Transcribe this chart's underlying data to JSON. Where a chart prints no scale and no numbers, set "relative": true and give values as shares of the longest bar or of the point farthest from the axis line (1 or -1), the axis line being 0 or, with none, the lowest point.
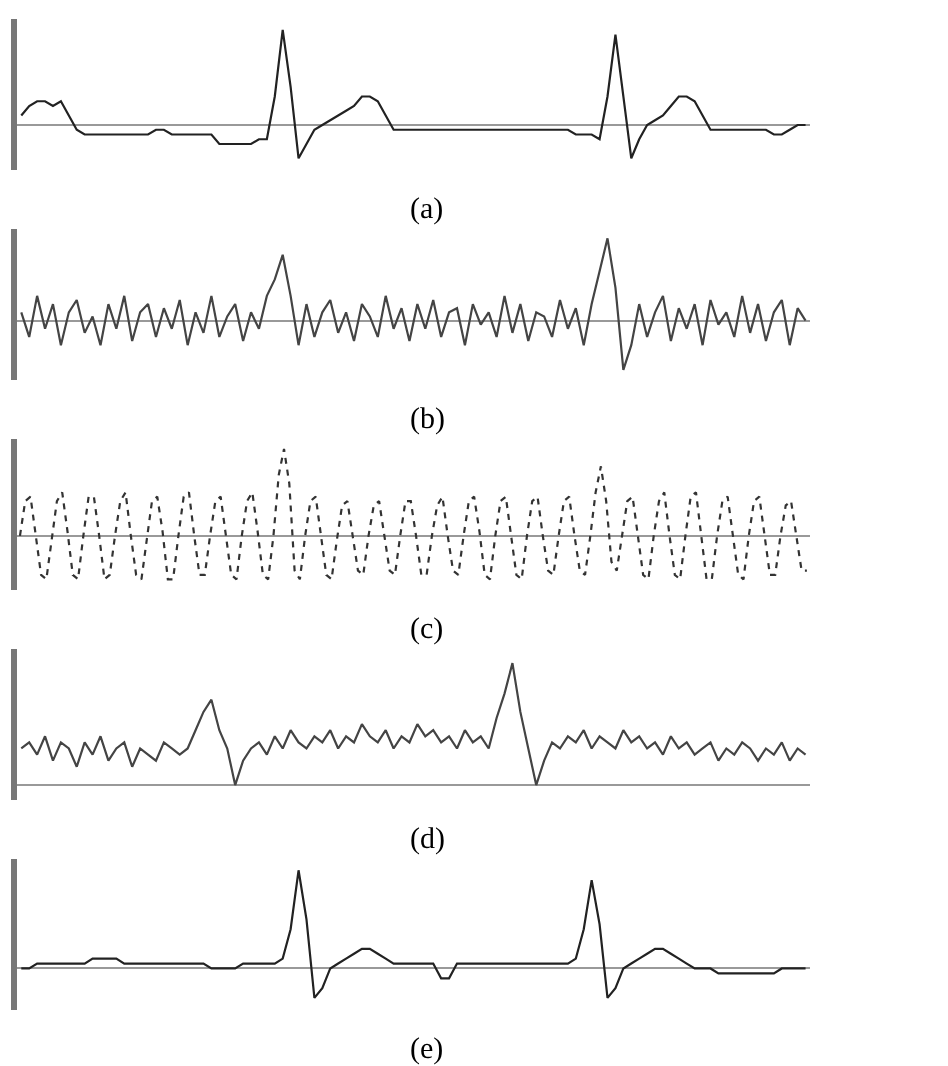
{
  "chart_data": [
    {
      "type": "line",
      "title": "(a)",
      "relative": true,
      "color": "#222222",
      "categories": [
        null,
        null,
        null,
        null,
        null,
        null,
        null,
        null,
        null,
        null,
        null,
        null,
        null,
        null,
        null,
        null,
        null,
        null,
        null,
        null,
        null,
        null,
        null,
        null,
        null,
        null,
        null,
        null,
        null,
        null,
        null,
        null,
        null,
        null,
        null,
        null,
        null,
        null,
        null,
        null,
        null,
        null,
        null,
        null,
        null,
        null,
        null,
        null,
        null,
        null,
        null,
        null,
        null,
        null,
        null,
        null,
        null,
        null,
        null,
        null,
        null,
        null,
        null,
        null,
        null,
        null,
        null,
        null,
        null,
        null,
        null,
        null,
        null,
        null,
        null,
        null,
        null,
        null,
        null,
        null,
        null,
        null,
        null,
        null,
        null,
        null,
        null,
        null,
        null,
        null,
        null,
        null,
        null,
        null,
        null,
        null,
        null,
        null,
        null,
        null
      ],
      "values": [
        0.1,
        0.2,
        0.25,
        0.25,
        0.2,
        0.25,
        0.1,
        -0.05,
        -0.1,
        -0.1,
        -0.1,
        -0.1,
        -0.1,
        -0.1,
        -0.1,
        -0.1,
        -0.1,
        -0.05,
        -0.05,
        -0.1,
        -0.1,
        -0.1,
        -0.1,
        -0.1,
        -0.1,
        -0.2,
        -0.2,
        -0.2,
        -0.2,
        -0.2,
        -0.15,
        -0.15,
        0.3,
        1.0,
        0.4,
        -0.35,
        -0.2,
        -0.05,
        0,
        0.05,
        0.1,
        0.15,
        0.2,
        0.3,
        0.3,
        0.25,
        0.1,
        -0.05,
        -0.05,
        -0.05,
        -0.05,
        -0.05,
        -0.05,
        -0.05,
        -0.05,
        -0.05,
        -0.05,
        -0.05,
        -0.05,
        -0.05,
        -0.05,
        -0.05,
        -0.05,
        -0.05,
        -0.05,
        -0.05,
        -0.05,
        -0.05,
        -0.05,
        -0.05,
        -0.1,
        -0.1,
        -0.1,
        -0.15,
        0.3,
        0.95,
        0.3,
        -0.35,
        -0.15,
        0,
        0.05,
        0.1,
        0.2,
        0.3,
        0.3,
        0.25,
        0.1,
        -0.05,
        -0.05,
        -0.05,
        -0.05,
        -0.05,
        -0.05,
        -0.05,
        -0.05,
        -0.1,
        -0.1,
        -0.05,
        0,
        0
      ]
    },
    {
      "type": "line",
      "title": "(b)",
      "relative": true,
      "color": "#444444",
      "categories": [
        null,
        null,
        null,
        null,
        null,
        null,
        null,
        null,
        null,
        null,
        null,
        null,
        null,
        null,
        null,
        null,
        null,
        null,
        null,
        null,
        null,
        null,
        null,
        null,
        null,
        null,
        null,
        null,
        null,
        null,
        null,
        null,
        null,
        null,
        null,
        null,
        null,
        null,
        null,
        null,
        null,
        null,
        null,
        null,
        null,
        null,
        null,
        null,
        null,
        null,
        null,
        null,
        null,
        null,
        null,
        null,
        null,
        null,
        null,
        null,
        null,
        null,
        null,
        null,
        null,
        null,
        null,
        null,
        null,
        null,
        null,
        null,
        null,
        null,
        null,
        null,
        null,
        null,
        null,
        null,
        null,
        null,
        null,
        null,
        null,
        null,
        null,
        null,
        null,
        null,
        null,
        null,
        null,
        null,
        null,
        null,
        null,
        null,
        null,
        null
      ],
      "values": [
        0.1,
        -0.2,
        0.3,
        -0.1,
        0.2,
        -0.3,
        0.1,
        0.25,
        -0.15,
        0.05,
        -0.3,
        0.2,
        -0.1,
        0.3,
        -0.25,
        0.1,
        0.2,
        -0.2,
        0.15,
        -0.1,
        0.25,
        -0.3,
        0.1,
        -0.15,
        0.3,
        -0.2,
        0.05,
        0.2,
        -0.25,
        0.1,
        -0.1,
        0.3,
        0.5,
        0.8,
        0.3,
        -0.3,
        0.2,
        -0.2,
        0.1,
        0.25,
        -0.15,
        0.1,
        -0.25,
        0.2,
        0.05,
        -0.2,
        0.3,
        -0.1,
        0.15,
        -0.25,
        0.2,
        -0.1,
        0.25,
        -0.2,
        0.1,
        0.15,
        -0.3,
        0.2,
        -0.05,
        0.1,
        -0.2,
        0.3,
        -0.15,
        0.2,
        -0.25,
        0.1,
        0.05,
        -0.2,
        0.25,
        -0.1,
        0.15,
        -0.3,
        0.2,
        0.6,
        1.0,
        0.4,
        -0.6,
        -0.3,
        0.2,
        -0.2,
        0.1,
        0.3,
        -0.25,
        0.15,
        -0.1,
        0.2,
        -0.3,
        0.25,
        -0.05,
        0.1,
        -0.2,
        0.3,
        -0.15,
        0.2,
        -0.25,
        0.1,
        0.25,
        -0.3,
        0.15,
        0
      ]
    },
    {
      "type": "line",
      "title": "(c)",
      "relative": true,
      "color": "#333333",
      "line_style": "dotted",
      "categories": [
        null,
        null,
        null,
        null,
        null,
        null,
        null,
        null,
        null,
        null,
        null,
        null,
        null,
        null,
        null,
        null,
        null,
        null,
        null,
        null,
        null,
        null,
        null,
        null,
        null,
        null,
        null,
        null,
        null,
        null,
        null,
        null,
        null,
        null,
        null,
        null,
        null,
        null,
        null,
        null,
        null,
        null,
        null,
        null,
        null,
        null,
        null,
        null,
        null,
        null,
        null,
        null,
        null,
        null,
        null,
        null,
        null,
        null,
        null,
        null,
        null,
        null,
        null,
        null,
        null,
        null,
        null,
        null,
        null,
        null,
        null,
        null,
        null,
        null,
        null,
        null,
        null,
        null,
        null,
        null,
        null,
        null,
        null,
        null,
        null,
        null,
        null,
        null,
        null,
        null,
        null,
        null,
        null,
        null,
        null,
        null,
        null,
        null,
        null,
        null,
        null,
        null,
        null,
        null,
        null,
        null,
        null,
        null,
        null,
        null,
        null,
        null,
        null,
        null,
        null,
        null,
        null,
        null,
        null,
        null,
        null,
        null,
        null,
        null,
        null,
        null,
        null,
        null,
        null,
        null,
        null,
        null,
        null,
        null,
        null,
        null,
        null,
        null,
        null,
        null,
        null,
        null,
        null,
        null,
        null,
        null,
        null,
        null,
        null,
        null
      ],
      "values": [
        0,
        0.4,
        0.45,
        0,
        -0.45,
        -0.5,
        -0.05,
        0.4,
        0.5,
        0.05,
        -0.45,
        -0.5,
        0,
        0.45,
        0.45,
        0,
        -0.5,
        -0.45,
        0,
        0.4,
        0.5,
        0,
        -0.45,
        -0.5,
        -0.05,
        0.4,
        0.45,
        0.05,
        -0.5,
        -0.5,
        0,
        0.45,
        0.5,
        0,
        -0.45,
        -0.45,
        0,
        0.4,
        0.45,
        0,
        -0.45,
        -0.5,
        0,
        0.4,
        0.5,
        0.05,
        -0.45,
        -0.5,
        0,
        0.7,
        1.0,
        0.6,
        -0.4,
        -0.5,
        0,
        0.4,
        0.45,
        0,
        -0.45,
        -0.5,
        -0.05,
        0.35,
        0.4,
        0,
        -0.4,
        -0.45,
        0,
        0.35,
        0.4,
        0,
        -0.4,
        -0.45,
        0,
        0.4,
        0.4,
        0,
        -0.45,
        -0.45,
        0,
        0.35,
        0.45,
        0,
        -0.4,
        -0.45,
        0,
        0.4,
        0.45,
        0.05,
        -0.45,
        -0.5,
        0,
        0.4,
        0.45,
        0,
        -0.45,
        -0.5,
        0,
        0.4,
        0.45,
        0,
        -0.4,
        -0.45,
        0,
        0.4,
        0.45,
        0,
        -0.4,
        -0.45,
        0,
        0.5,
        0.8,
        0.4,
        -0.3,
        -0.4,
        0,
        0.4,
        0.45,
        0,
        -0.45,
        -0.5,
        0,
        0.4,
        0.5,
        0,
        -0.45,
        -0.5,
        0,
        0.45,
        0.5,
        0,
        -0.5,
        -0.5,
        0,
        0.4,
        0.45,
        0,
        -0.45,
        -0.5,
        0,
        0.4,
        0.45,
        0,
        -0.45,
        -0.45,
        0,
        0.35,
        0.4,
        0,
        -0.4,
        -0.4
      ]
    },
    {
      "type": "line",
      "title": "(d)",
      "relative": true,
      "color": "#444444",
      "categories": [
        null,
        null,
        null,
        null,
        null,
        null,
        null,
        null,
        null,
        null,
        null,
        null,
        null,
        null,
        null,
        null,
        null,
        null,
        null,
        null,
        null,
        null,
        null,
        null,
        null,
        null,
        null,
        null,
        null,
        null,
        null,
        null,
        null,
        null,
        null,
        null,
        null,
        null,
        null,
        null,
        null,
        null,
        null,
        null,
        null,
        null,
        null,
        null,
        null,
        null,
        null,
        null,
        null,
        null,
        null,
        null,
        null,
        null,
        null,
        null,
        null,
        null,
        null,
        null,
        null,
        null,
        null,
        null,
        null,
        null,
        null,
        null,
        null,
        null,
        null,
        null,
        null,
        null,
        null,
        null,
        null,
        null,
        null,
        null,
        null,
        null,
        null,
        null,
        null,
        null,
        null,
        null,
        null,
        null,
        null,
        null,
        null,
        null,
        null,
        null
      ],
      "values": [
        0.3,
        0.35,
        0.25,
        0.4,
        0.2,
        0.35,
        0.3,
        0.15,
        0.35,
        0.25,
        0.4,
        0.2,
        0.3,
        0.35,
        0.15,
        0.3,
        0.25,
        0.2,
        0.35,
        0.3,
        0.25,
        0.3,
        0.45,
        0.6,
        0.7,
        0.45,
        0.3,
        0,
        0.2,
        0.3,
        0.35,
        0.25,
        0.4,
        0.3,
        0.45,
        0.35,
        0.3,
        0.4,
        0.35,
        0.45,
        0.3,
        0.4,
        0.35,
        0.5,
        0.4,
        0.35,
        0.45,
        0.3,
        0.4,
        0.35,
        0.5,
        0.4,
        0.45,
        0.35,
        0.4,
        0.3,
        0.45,
        0.35,
        0.4,
        0.3,
        0.55,
        0.75,
        1.0,
        0.6,
        0.3,
        0,
        0.2,
        0.35,
        0.3,
        0.4,
        0.35,
        0.45,
        0.3,
        0.4,
        0.35,
        0.3,
        0.45,
        0.35,
        0.4,
        0.3,
        0.35,
        0.25,
        0.4,
        0.3,
        0.35,
        0.25,
        0.3,
        0.35,
        0.2,
        0.3,
        0.25,
        0.35,
        0.3,
        0.2,
        0.3,
        0.25,
        0.35,
        0.2,
        0.3,
        0.25
      ]
    },
    {
      "type": "line",
      "title": "(e)",
      "relative": true,
      "color": "#222222",
      "categories": [
        null,
        null,
        null,
        null,
        null,
        null,
        null,
        null,
        null,
        null,
        null,
        null,
        null,
        null,
        null,
        null,
        null,
        null,
        null,
        null,
        null,
        null,
        null,
        null,
        null,
        null,
        null,
        null,
        null,
        null,
        null,
        null,
        null,
        null,
        null,
        null,
        null,
        null,
        null,
        null,
        null,
        null,
        null,
        null,
        null,
        null,
        null,
        null,
        null,
        null,
        null,
        null,
        null,
        null,
        null,
        null,
        null,
        null,
        null,
        null,
        null,
        null,
        null,
        null,
        null,
        null,
        null,
        null,
        null,
        null,
        null,
        null,
        null,
        null,
        null,
        null,
        null,
        null,
        null,
        null,
        null,
        null,
        null,
        null,
        null,
        null,
        null,
        null,
        null,
        null,
        null,
        null,
        null,
        null,
        null,
        null,
        null,
        null,
        null,
        null
      ],
      "values": [
        0,
        0,
        0.05,
        0.05,
        0.05,
        0.05,
        0.05,
        0.05,
        0.05,
        0.1,
        0.1,
        0.1,
        0.1,
        0.05,
        0.05,
        0.05,
        0.05,
        0.05,
        0.05,
        0.05,
        0.05,
        0.05,
        0.05,
        0.05,
        0,
        0,
        0,
        0,
        0.05,
        0.05,
        0.05,
        0.05,
        0.05,
        0.1,
        0.4,
        1.0,
        0.5,
        -0.3,
        -0.2,
        0,
        0.05,
        0.1,
        0.15,
        0.2,
        0.2,
        0.15,
        0.1,
        0.05,
        0.05,
        0.05,
        0.05,
        0.05,
        0.05,
        -0.1,
        -0.1,
        0.05,
        0.05,
        0.05,
        0.05,
        0.05,
        0.05,
        0.05,
        0.05,
        0.05,
        0.05,
        0.05,
        0.05,
        0.05,
        0.05,
        0.05,
        0.1,
        0.4,
        0.9,
        0.45,
        -0.3,
        -0.2,
        0,
        0.05,
        0.1,
        0.15,
        0.2,
        0.2,
        0.15,
        0.1,
        0.05,
        0,
        0,
        0,
        -0.05,
        -0.05,
        -0.05,
        -0.05,
        -0.05,
        -0.05,
        -0.05,
        -0.05,
        0,
        0,
        0,
        0
      ]
    }
  ]
}
